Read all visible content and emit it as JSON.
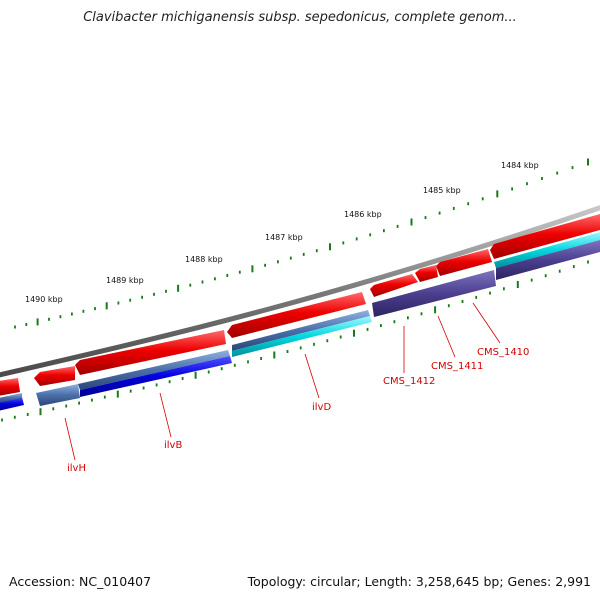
{
  "title": "Clavibacter michiganensis subsp. sepedonicus, complete genom...",
  "footer": {
    "accession": "Accession: NC_010407",
    "stats": "Topology: circular; Length: 3,258,645 bp; Genes: 2,991"
  },
  "colors": {
    "backbone": "#7a7a7a",
    "gene_red": "#ee0000",
    "gene_blue": "#0000dd",
    "gene_steel": "#4a6fa8",
    "gene_cyan": "#00d8e0",
    "gene_purple": "#4b3f8f",
    "tick": "#1a7a1a",
    "label": "#d40000"
  },
  "scale": {
    "unit": "kbp",
    "major_ticks": [
      {
        "value": 1484,
        "label": "1484 kbp"
      },
      {
        "value": 1485,
        "label": "1485 kbp"
      },
      {
        "value": 1486,
        "label": "1486 kbp"
      },
      {
        "value": 1487,
        "label": "1487 kbp"
      },
      {
        "value": 1488,
        "label": "1488 kbp"
      },
      {
        "value": 1489,
        "label": "1489 kbp"
      },
      {
        "value": 1490,
        "label": "1490 kbp"
      }
    ]
  },
  "gene_labels": [
    {
      "name": "ilvH"
    },
    {
      "name": "ilvB"
    },
    {
      "name": "ilvD"
    },
    {
      "name": "CMS_1412"
    },
    {
      "name": "CMS_1411"
    },
    {
      "name": "CMS_1410"
    }
  ]
}
